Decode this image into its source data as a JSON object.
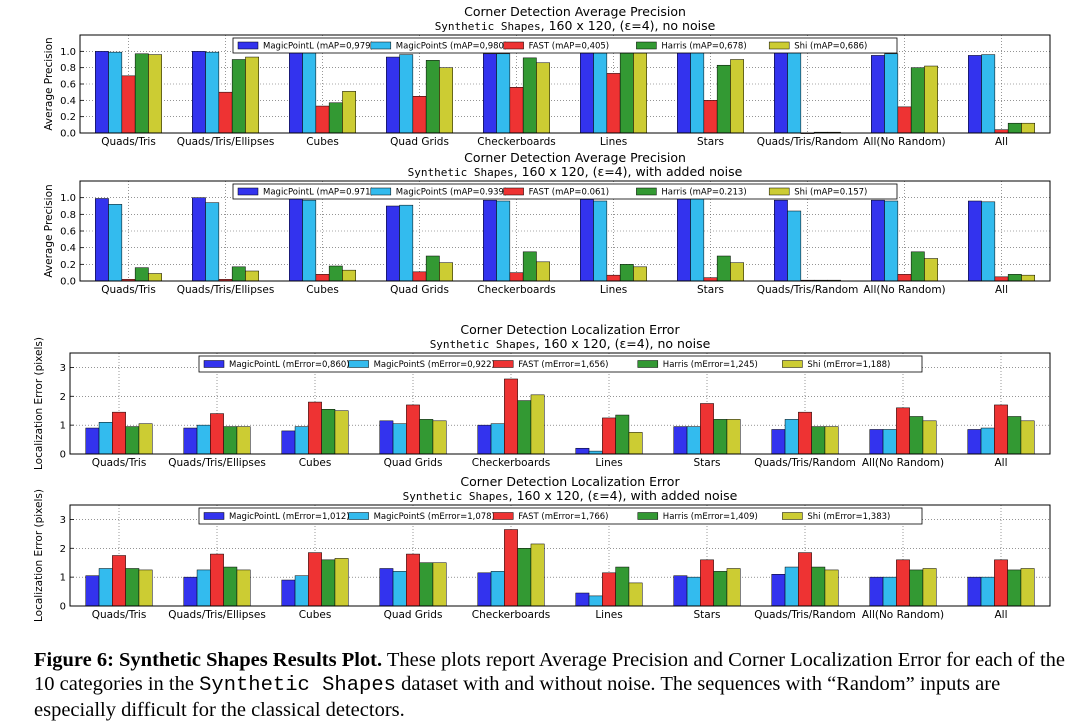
{
  "series_colors": [
    "#3333ee",
    "#33bbee",
    "#ee3333",
    "#339933",
    "#cccc33"
  ],
  "chart_data": [
    {
      "type": "bar",
      "title": "Corner Detection Average Precision",
      "subtitle_mono": "Synthetic Shapes",
      "subtitle_rest": ", 160 x 120, (ε=4), no noise",
      "ylabel": "Average Precision",
      "ylim": [
        0,
        1.2
      ],
      "yticks": [
        "0.0",
        "0.2",
        "0.4",
        "0.6",
        "0.8",
        "1.0"
      ],
      "categories": [
        "Quads/Tris",
        "Quads/Tris/Ellipses",
        "Cubes",
        "Quad Grids",
        "Checkerboards",
        "Lines",
        "Stars",
        "Quads/Tris/Random",
        "All(No Random)",
        "All"
      ],
      "legend": "top",
      "grid": true,
      "series": [
        {
          "name": "MagicPointL (mAP=0,979)",
          "values": [
            1.0,
            1.0,
            1.0,
            0.93,
            0.97,
            0.98,
            1.0,
            1.0,
            0.95,
            0.95
          ]
        },
        {
          "name": "MagicPointS (mAP=0,980)",
          "values": [
            0.99,
            0.99,
            1.0,
            0.96,
            0.97,
            0.98,
            1.0,
            1.0,
            0.97,
            0.96
          ]
        },
        {
          "name": "FAST (mAP=0,405)",
          "values": [
            0.7,
            0.5,
            0.33,
            0.45,
            0.56,
            0.73,
            0.4,
            0.0,
            0.32,
            0.04
          ]
        },
        {
          "name": "Harris (mAP=0,678)",
          "values": [
            0.97,
            0.9,
            0.37,
            0.89,
            0.92,
            0.98,
            0.83,
            0.01,
            0.8,
            0.12
          ]
        },
        {
          "name": "Shi (mAP=0,686)",
          "values": [
            0.96,
            0.93,
            0.51,
            0.8,
            0.86,
            0.98,
            0.9,
            0.01,
            0.82,
            0.12
          ]
        }
      ]
    },
    {
      "type": "bar",
      "title": "Corner Detection Average Precision",
      "subtitle_mono": "Synthetic Shapes",
      "subtitle_rest": ", 160 x 120, (ε=4), with added noise",
      "ylabel": "Average Precision",
      "ylim": [
        0,
        1.2
      ],
      "yticks": [
        "0.0",
        "0.2",
        "0.4",
        "0.6",
        "0.8",
        "1.0"
      ],
      "categories": [
        "Quads/Tris",
        "Quads/Tris/Ellipses",
        "Cubes",
        "Quad Grids",
        "Checkerboards",
        "Lines",
        "Stars",
        "Quads/Tris/Random",
        "All(No Random)",
        "All"
      ],
      "legend": "top",
      "grid": true,
      "series": [
        {
          "name": "MagicPointL (mAP=0.971)",
          "values": [
            0.99,
            1.0,
            0.99,
            0.9,
            0.97,
            0.98,
            1.0,
            0.97,
            0.97,
            0.96
          ]
        },
        {
          "name": "MagicPointS (mAP=0.939)",
          "values": [
            0.92,
            0.94,
            0.97,
            0.91,
            0.96,
            0.96,
            1.0,
            0.84,
            0.96,
            0.95
          ]
        },
        {
          "name": "FAST (mAP=0.061)",
          "values": [
            0.02,
            0.02,
            0.08,
            0.11,
            0.1,
            0.07,
            0.04,
            0.01,
            0.08,
            0.05
          ]
        },
        {
          "name": "Harris (mAP=0.213)",
          "values": [
            0.16,
            0.17,
            0.18,
            0.3,
            0.35,
            0.2,
            0.3,
            0.01,
            0.35,
            0.08
          ]
        },
        {
          "name": "Shi (mAP=0.157)",
          "values": [
            0.09,
            0.12,
            0.13,
            0.22,
            0.23,
            0.17,
            0.22,
            0.01,
            0.27,
            0.07
          ]
        }
      ]
    },
    {
      "type": "bar",
      "title": "Corner Detection Localization Error",
      "subtitle_mono": "Synthetic Shapes",
      "subtitle_rest": ", 160 x 120, (ε=4), no noise",
      "ylabel": "Localization Error (pixels)",
      "ylim": [
        0,
        3.5
      ],
      "yticks": [
        "0",
        "1",
        "2",
        "3"
      ],
      "categories": [
        "Quads/Tris",
        "Quads/Tris/Ellipses",
        "Cubes",
        "Quad Grids",
        "Checkerboards",
        "Lines",
        "Stars",
        "Quads/Tris/Random",
        "All(No Random)",
        "All"
      ],
      "legend": "top",
      "grid": true,
      "series": [
        {
          "name": "MagicPointL (mError=0,860)",
          "values": [
            0.9,
            0.9,
            0.8,
            1.15,
            1.0,
            0.2,
            0.95,
            0.85,
            0.85,
            0.85
          ]
        },
        {
          "name": "MagicPointS (mError=0,922)",
          "values": [
            1.1,
            1.0,
            0.95,
            1.05,
            1.05,
            0.1,
            0.95,
            1.2,
            0.85,
            0.9
          ]
        },
        {
          "name": "FAST (mError=1,656)",
          "values": [
            1.45,
            1.4,
            1.8,
            1.7,
            2.6,
            1.25,
            1.75,
            1.45,
            1.6,
            1.7
          ]
        },
        {
          "name": "Harris (mError=1,245)",
          "values": [
            0.95,
            0.95,
            1.55,
            1.2,
            1.85,
            1.35,
            1.2,
            0.95,
            1.3,
            1.3
          ]
        },
        {
          "name": "Shi (mError=1,188)",
          "values": [
            1.05,
            0.95,
            1.5,
            1.15,
            2.05,
            0.75,
            1.2,
            0.95,
            1.15,
            1.15
          ]
        }
      ]
    },
    {
      "type": "bar",
      "title": "Corner Detection Localization Error",
      "subtitle_mono": "Synthetic Shapes",
      "subtitle_rest": ", 160 x 120, (ε=4), with added noise",
      "ylabel": "Localization Error (pixels)",
      "ylim": [
        0,
        3.5
      ],
      "yticks": [
        "0",
        "1",
        "2",
        "3"
      ],
      "categories": [
        "Quads/Tris",
        "Quads/Tris/Ellipses",
        "Cubes",
        "Quad Grids",
        "Checkerboards",
        "Lines",
        "Stars",
        "Quads/Tris/Random",
        "All(No Random)",
        "All"
      ],
      "legend": "top",
      "grid": true,
      "series": [
        {
          "name": "MagicPointL (mError=1,012)",
          "values": [
            1.05,
            1.0,
            0.9,
            1.3,
            1.15,
            0.45,
            1.05,
            1.1,
            1.0,
            1.0
          ]
        },
        {
          "name": "MagicPointS (mError=1,078)",
          "values": [
            1.3,
            1.25,
            1.05,
            1.2,
            1.2,
            0.35,
            1.0,
            1.35,
            1.0,
            1.0
          ]
        },
        {
          "name": "FAST (mError=1,766)",
          "values": [
            1.75,
            1.8,
            1.85,
            1.8,
            2.65,
            1.15,
            1.6,
            1.85,
            1.6,
            1.6
          ]
        },
        {
          "name": "Harris (mError=1,409)",
          "values": [
            1.3,
            1.35,
            1.6,
            1.5,
            2.0,
            1.35,
            1.2,
            1.35,
            1.25,
            1.25
          ]
        },
        {
          "name": "Shi (mError=1,383)",
          "values": [
            1.25,
            1.25,
            1.65,
            1.5,
            2.15,
            0.8,
            1.3,
            1.25,
            1.3,
            1.3
          ]
        }
      ]
    }
  ],
  "caption": {
    "label": "Figure 6: Synthetic Shapes Results Plot.",
    "text_1": " These plots report Average Precision and Corner Localization Error for each of the 10 categories in the ",
    "mono": "Synthetic Shapes",
    "text_2": " dataset with and without noise. The sequences with “Random” inputs are especially difficult for the classical detectors."
  }
}
